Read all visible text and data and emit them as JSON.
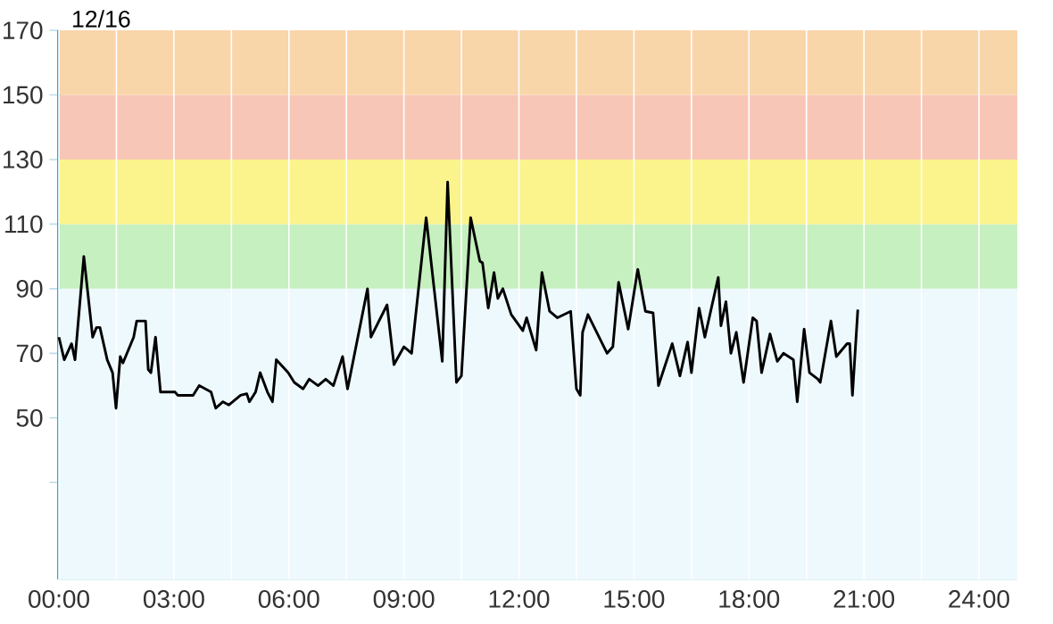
{
  "chart_data": {
    "type": "line",
    "annotations": [
      "12/16"
    ],
    "x": [
      0,
      0.14,
      0.33,
      0.42,
      0.65,
      0.88,
      0.98,
      1.07,
      1.26,
      1.4,
      1.49,
      1.6,
      1.67,
      1.95,
      2.03,
      2.26,
      2.33,
      2.4,
      2.52,
      2.65,
      3.03,
      3.1,
      3.5,
      3.66,
      3.97,
      4.09,
      4.28,
      4.43,
      4.74,
      4.9,
      4.97,
      5.13,
      5.25,
      5.44,
      5.57,
      5.67,
      5.98,
      6.14,
      6.37,
      6.53,
      6.76,
      6.96,
      7.16,
      7.4,
      7.53,
      8.05,
      8.14,
      8.56,
      8.74,
      9.0,
      9.1,
      9.2,
      9.58,
      10.0,
      10.14,
      10.37,
      10.5,
      10.74,
      10.98,
      11.05,
      11.2,
      11.35,
      11.45,
      11.58,
      11.8,
      12.1,
      12.2,
      12.45,
      12.6,
      12.8,
      13.0,
      13.35,
      13.5,
      13.6,
      13.66,
      13.8,
      14.05,
      14.3,
      14.45,
      14.6,
      14.85,
      15.1,
      15.3,
      15.5,
      15.64,
      16.0,
      16.2,
      16.4,
      16.5,
      16.7,
      16.85,
      17.2,
      17.27,
      17.4,
      17.53,
      17.67,
      17.86,
      18.1,
      18.2,
      18.33,
      18.55,
      18.74,
      18.9,
      19.16,
      19.26,
      19.44,
      19.58,
      19.8,
      19.86,
      20.14,
      20.28,
      20.56,
      20.63,
      20.7,
      20.84
    ],
    "series": [
      {
        "color": "#000000",
        "values": [
          75,
          68,
          73,
          68,
          100,
          75,
          78,
          78,
          68,
          64,
          53,
          69,
          67,
          75,
          80,
          80,
          65,
          64,
          75,
          58,
          58,
          57,
          57,
          60,
          58,
          53,
          55,
          54,
          57,
          57.5,
          55,
          58,
          64,
          58,
          55,
          68,
          64,
          61,
          59,
          62,
          60,
          62,
          60,
          69,
          59,
          90,
          75,
          85,
          66.5,
          72,
          71,
          70,
          112,
          67.5,
          123,
          61,
          63,
          112,
          98.5,
          98,
          84,
          95,
          87,
          90,
          82,
          77,
          81,
          71,
          95,
          83,
          81,
          83,
          59,
          57,
          76.5,
          82,
          76,
          70,
          72,
          92,
          77.5,
          96,
          83,
          82.5,
          60,
          73,
          63,
          73.5,
          64,
          84,
          75,
          93.5,
          78.5,
          86,
          70,
          76.5,
          61,
          81,
          80,
          64,
          76,
          67.5,
          70,
          68,
          55,
          77.5,
          64,
          62,
          61,
          80,
          69,
          73,
          73,
          57,
          83.5
        ]
      }
    ],
    "xlim": [
      0,
      25
    ],
    "xticks": [
      {
        "value": 0,
        "label": "00:00"
      },
      {
        "value": 1.5,
        "label": null
      },
      {
        "value": 3,
        "label": "03:00"
      },
      {
        "value": 4.5,
        "label": null
      },
      {
        "value": 6,
        "label": "06:00"
      },
      {
        "value": 7.5,
        "label": null
      },
      {
        "value": 9,
        "label": "09:00"
      },
      {
        "value": 10.5,
        "label": null
      },
      {
        "value": 12,
        "label": "12:00"
      },
      {
        "value": 13.5,
        "label": null
      },
      {
        "value": 15,
        "label": "15:00"
      },
      {
        "value": 16.5,
        "label": null
      },
      {
        "value": 18,
        "label": "18:00"
      },
      {
        "value": 19.5,
        "label": null
      },
      {
        "value": 21,
        "label": "21:00"
      },
      {
        "value": 22.5,
        "label": null
      },
      {
        "value": 24,
        "label": "24:00"
      }
    ],
    "ylim": [
      0,
      170
    ],
    "yticks": [
      {
        "value": 30,
        "label": null
      },
      50,
      70,
      90,
      110,
      130,
      150,
      170
    ],
    "bands": [
      {
        "axis": "y",
        "from": 0,
        "to": 90,
        "color": "#eef9fd"
      },
      {
        "axis": "y",
        "from": 90,
        "to": 110,
        "color": "#c6f0bf"
      },
      {
        "axis": "y",
        "from": 110,
        "to": 130,
        "color": "#fbf48c"
      },
      {
        "axis": "y",
        "from": 130,
        "to": 150,
        "color": "#f8c6b6"
      },
      {
        "axis": "y",
        "from": 150,
        "to": 170,
        "color": "#f9d5aa"
      }
    ],
    "grid": "x",
    "marker": "none",
    "line_style": "solid"
  }
}
